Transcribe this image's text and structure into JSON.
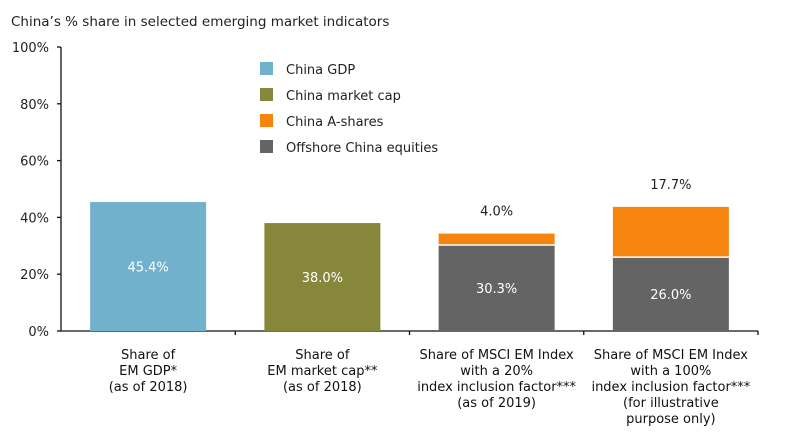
{
  "chart_data": {
    "type": "bar",
    "stacked": true,
    "title": "China’s % share in selected emerging market indicators",
    "xlabel": "",
    "ylabel": "",
    "ylim": [
      0,
      100
    ],
    "yticks": [
      "0%",
      "20%",
      "40%",
      "60%",
      "80%",
      "100%"
    ],
    "ytick_values": [
      0,
      20,
      40,
      60,
      80,
      100
    ],
    "grid": false,
    "legend_position": "top-center",
    "categories": [
      [
        "Share of",
        "EM GDP*",
        "(as of 2018)"
      ],
      [
        "Share of",
        "EM market cap**",
        "(as of 2018)"
      ],
      [
        "Share of MSCI EM Index",
        "with a 20%",
        "index inclusion factor***",
        "(as of 2019)"
      ],
      [
        "Share of MSCI EM Index",
        "with a 100%",
        "index inclusion factor***",
        "(for illustrative",
        "purpose only)"
      ]
    ],
    "series": [
      {
        "name": "China GDP",
        "color": "#72b1cc",
        "values": [
          45.4,
          null,
          null,
          null
        ],
        "labels": [
          "45.4%",
          null,
          null,
          null
        ],
        "label_position": "inside"
      },
      {
        "name": "China market cap",
        "color": "#86873a",
        "values": [
          null,
          38.0,
          null,
          null
        ],
        "labels": [
          null,
          "38.0%",
          null,
          null
        ],
        "label_position": "inside"
      },
      {
        "name": "Offshore China equities",
        "color": "#646464",
        "values": [
          null,
          null,
          30.3,
          26.0
        ],
        "labels": [
          null,
          null,
          "30.3%",
          "26.0%"
        ],
        "label_position": "inside"
      },
      {
        "name": "China A-shares",
        "color": "#f5850e",
        "values": [
          null,
          null,
          4.0,
          17.7
        ],
        "labels": [
          null,
          null,
          "4.0%",
          "17.7%"
        ],
        "label_position": "above"
      }
    ],
    "legend_order": [
      "China GDP",
      "China market cap",
      "China A-shares",
      "Offshore China equities"
    ]
  }
}
